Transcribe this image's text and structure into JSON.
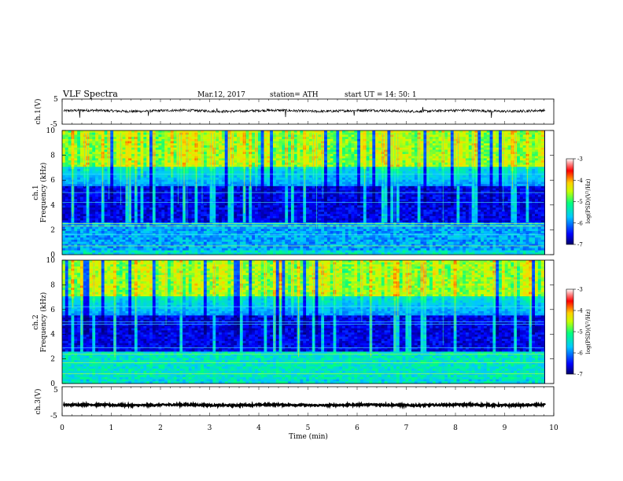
{
  "header": {
    "title": "VLF  Spectra",
    "date": "Mar.12, 2017",
    "station": "station= ATH",
    "start_ut": "start  UT  =   14: 50: 1"
  },
  "chart_data": [
    {
      "type": "line",
      "name": "ch1-waveform",
      "ylabel": "ch.1(V)",
      "xlim": [
        0,
        10
      ],
      "ylim": [
        -5,
        5
      ],
      "yticks": [
        "5",
        "-5"
      ],
      "baseline": 0.3,
      "noise_amplitude": 0.5,
      "spikes": [
        -2.4,
        -1.7,
        1.3,
        -2.2,
        -1.6,
        1.8,
        -2.5
      ]
    },
    {
      "type": "heatmap",
      "name": "ch1-spectrogram",
      "ylabel": "ch.1\nFrequency (kHz)",
      "xlim": [
        0,
        9.8
      ],
      "ylim": [
        0,
        10
      ],
      "yticks": [
        "0",
        "2",
        "4",
        "6",
        "8",
        "10"
      ],
      "colorbar": {
        "label": "log(PSD)(V²/Hz)",
        "range": [
          -7,
          -3
        ],
        "ticks": [
          "-3",
          "-4",
          "-5",
          "-6",
          "-7"
        ]
      }
    },
    {
      "type": "heatmap",
      "name": "ch2-spectrogram",
      "ylabel": "ch.2\nFrequency (kHz)",
      "xlim": [
        0,
        9.8
      ],
      "ylim": [
        0,
        10
      ],
      "yticks": [
        "0",
        "2",
        "4",
        "6",
        "8",
        "10"
      ],
      "colorbar": {
        "label": "log(PSD)(V²/Hz)",
        "range": [
          -7,
          -3
        ],
        "ticks": [
          "-3",
          "-4",
          "-5",
          "-6",
          "-7"
        ]
      }
    },
    {
      "type": "line",
      "name": "ch3-waveform",
      "ylabel": "ch.3(V)",
      "xlim": [
        0,
        10
      ],
      "ylim": [
        -5,
        5
      ],
      "yticks": [
        "5",
        "-5"
      ],
      "baseline": -1.3,
      "noise_amplitude": 0.3
    }
  ],
  "x_axis": {
    "label": "Time  (min)",
    "ticks": [
      "0",
      "1",
      "2",
      "3",
      "4",
      "5",
      "6",
      "7",
      "8",
      "9",
      "10"
    ]
  }
}
